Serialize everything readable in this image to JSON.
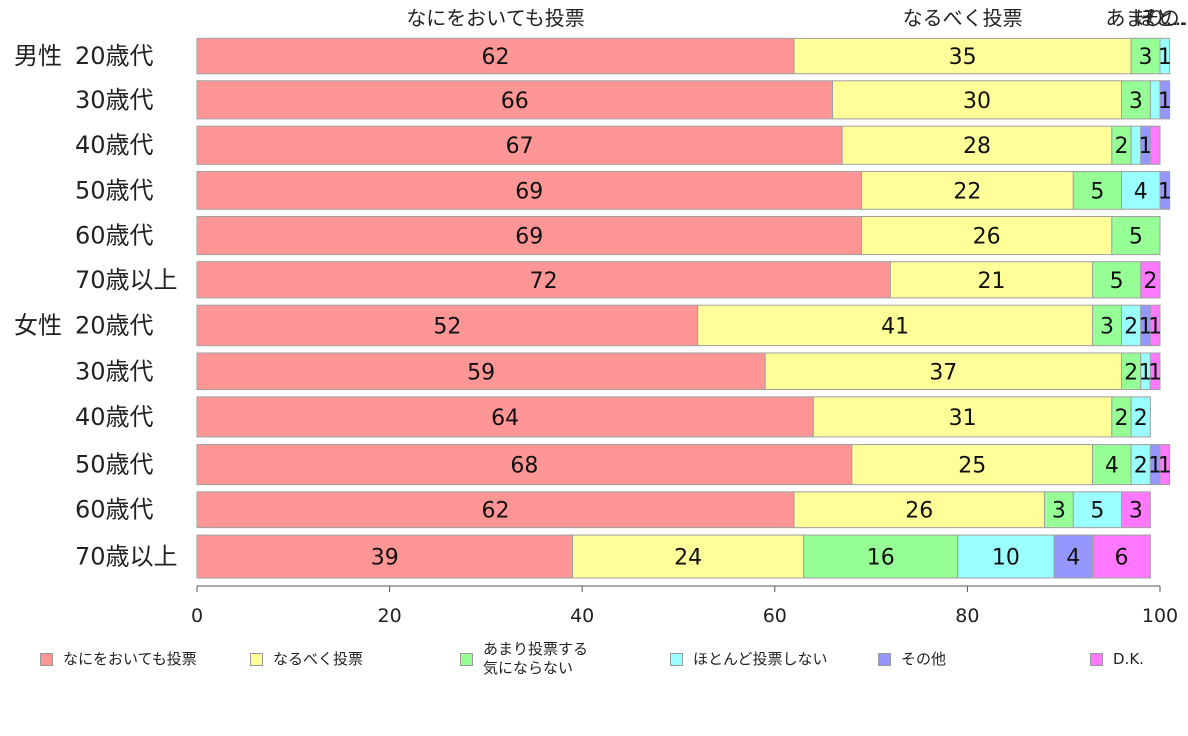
{
  "chart_data": {
    "type": "bar",
    "orientation": "horizontal",
    "stacked": true,
    "title": "",
    "xlabel": "",
    "ylabel": "",
    "xlim": [
      0,
      100
    ],
    "x_ticks": [
      "0",
      "20",
      "40",
      "60",
      "80",
      "100"
    ],
    "top_labels": [
      "なにをおいても投票",
      "なるべく投票",
      "あまり…",
      "ほと…",
      "その…"
    ],
    "categories": [
      {
        "group": "男性",
        "label": "20歳代"
      },
      {
        "group": "",
        "label": "30歳代"
      },
      {
        "group": "",
        "label": "40歳代"
      },
      {
        "group": "",
        "label": "50歳代"
      },
      {
        "group": "",
        "label": "60歳代"
      },
      {
        "group": "",
        "label": "70歳以上"
      },
      {
        "group": "女性",
        "label": "20歳代"
      },
      {
        "group": "",
        "label": "30歳代"
      },
      {
        "group": "",
        "label": "40歳代"
      },
      {
        "group": "",
        "label": "50歳代"
      },
      {
        "group": "",
        "label": "60歳代"
      },
      {
        "group": "",
        "label": "70歳以上"
      }
    ],
    "row_weights": [
      0.91,
      0.98,
      0.98,
      0.97,
      0.98,
      0.93,
      1.04,
      0.94,
      1.03,
      1.03,
      0.92,
      1.1
    ],
    "series": [
      {
        "name": "なにをおいても投票",
        "color": "#ff9696",
        "values": [
          62,
          66,
          67,
          69,
          69,
          72,
          52,
          59,
          64,
          68,
          62,
          39
        ]
      },
      {
        "name": "なるべく投票",
        "color": "#ffff9a",
        "values": [
          35,
          30,
          28,
          22,
          26,
          21,
          41,
          37,
          31,
          25,
          26,
          24
        ]
      },
      {
        "name": "あまり投票する\n気にならない",
        "color": "#96ff96",
        "values": [
          3,
          3,
          2,
          5,
          5,
          5,
          3,
          2,
          2,
          4,
          3,
          16
        ]
      },
      {
        "name": "ほとんど投票しない",
        "color": "#9affff",
        "values": [
          1,
          1,
          1,
          4,
          0,
          0,
          2,
          1,
          2,
          2,
          5,
          10
        ]
      },
      {
        "name": "その他",
        "color": "#9696ff",
        "values": [
          0,
          1,
          1,
          1,
          0,
          0,
          1,
          0,
          0,
          1,
          0,
          4
        ]
      },
      {
        "name": "D.K.",
        "color": "#ff78ff",
        "values": [
          0,
          0,
          1,
          0,
          0,
          2,
          1,
          1,
          0,
          1,
          3,
          6
        ]
      }
    ],
    "segment_labels": [
      [
        "62",
        "35",
        "3",
        "1",
        "",
        ""
      ],
      [
        "66",
        "30",
        "3",
        "",
        "1",
        ""
      ],
      [
        "67",
        "28",
        "2",
        "",
        "1",
        ""
      ],
      [
        "69",
        "22",
        "5",
        "4",
        "1",
        ""
      ],
      [
        "69",
        "26",
        "5",
        "",
        "",
        ""
      ],
      [
        "72",
        "21",
        "5",
        "",
        "",
        "2"
      ],
      [
        "52",
        "41",
        "3",
        "2",
        "1",
        "1"
      ],
      [
        "59",
        "37",
        "2",
        "1",
        "",
        "1"
      ],
      [
        "64",
        "31",
        "2",
        "2",
        "",
        ""
      ],
      [
        "68",
        "25",
        "4",
        "2",
        "1",
        "1"
      ],
      [
        "62",
        "26",
        "3",
        "5",
        "",
        "3"
      ],
      [
        "39",
        "24",
        "16",
        "10",
        "4",
        "6"
      ]
    ],
    "legend_position": "bottom"
  }
}
